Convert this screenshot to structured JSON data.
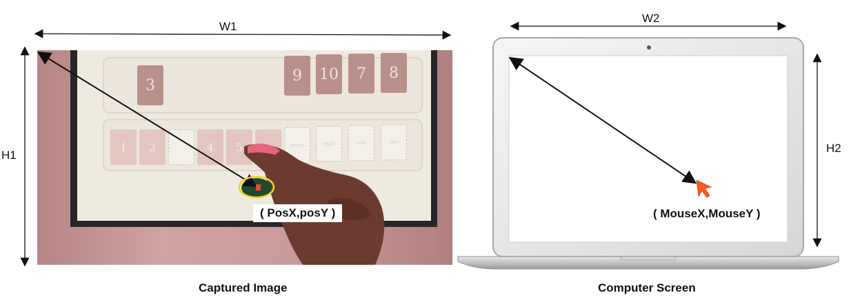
{
  "dimensions": {
    "w1": "W1",
    "h1": "H1",
    "w2": "W2",
    "h2": "H2"
  },
  "captured_image": {
    "caption": "Captured Image",
    "coord_label": "( PosX,posY )",
    "top_tiles": [
      "3",
      "9",
      "10",
      "7",
      "8"
    ],
    "bottom_tiles": [
      "1",
      "2",
      "",
      "4",
      "5",
      "",
      "seven",
      "eight",
      "nine",
      "ten"
    ]
  },
  "computer_screen": {
    "caption": "Computer Screen",
    "coord_label": "( MouseX,MouseY )"
  },
  "colors": {
    "cursor": "#ff5a1f",
    "marker_ellipse": "#f2d21b",
    "marker_point": "#e8492c",
    "arrow": "#111111"
  },
  "icons": {
    "cursor": "mouse-cursor-icon",
    "webcam": "webcam-icon"
  }
}
